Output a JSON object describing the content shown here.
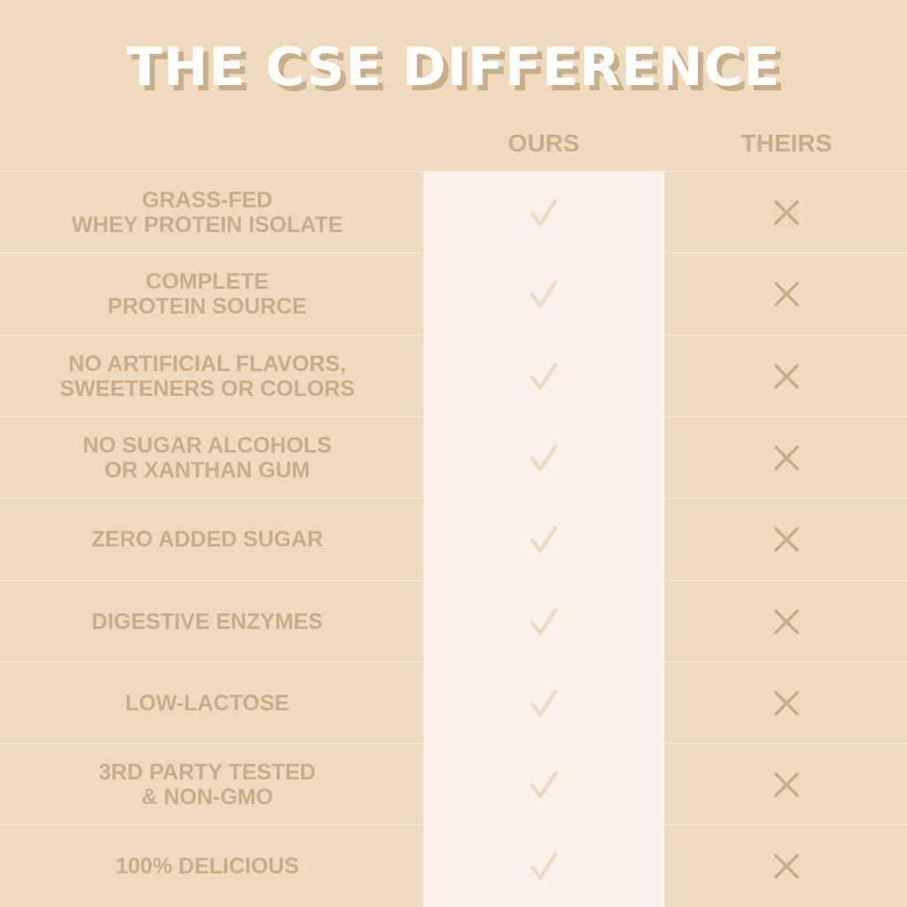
{
  "title": "THE CSE DIFFERENCE",
  "columns": {
    "ours": "OURS",
    "theirs": "THEIRS"
  },
  "colors": {
    "background": "#EEDBBF",
    "ours_column": "#FAF3EB",
    "text": "#C9AD88",
    "check": "#EEDBBF",
    "cross": "#C9AD88",
    "title": "#FFFFFF",
    "title_shadow": "#C8AF8A"
  },
  "icons": {
    "ours": "check-icon",
    "theirs": "cross-icon"
  },
  "rows": [
    {
      "feature": "GRASS-FED\nWHEY PROTEIN ISOLATE",
      "ours": true,
      "theirs": false
    },
    {
      "feature": "COMPLETE\nPROTEIN SOURCE",
      "ours": true,
      "theirs": false
    },
    {
      "feature": "NO ARTIFICIAL FLAVORS,\nSWEETENERS OR COLORS",
      "ours": true,
      "theirs": false
    },
    {
      "feature": "NO SUGAR ALCOHOLS\nOR XANTHAN GUM",
      "ours": true,
      "theirs": false
    },
    {
      "feature": "ZERO ADDED SUGAR",
      "ours": true,
      "theirs": false
    },
    {
      "feature": "DIGESTIVE ENZYMES",
      "ours": true,
      "theirs": false
    },
    {
      "feature": "LOW-LACTOSE",
      "ours": true,
      "theirs": false
    },
    {
      "feature": "3RD PARTY TESTED\n& NON-GMO",
      "ours": true,
      "theirs": false
    },
    {
      "feature": "100% DELICIOUS",
      "ours": true,
      "theirs": false
    }
  ]
}
